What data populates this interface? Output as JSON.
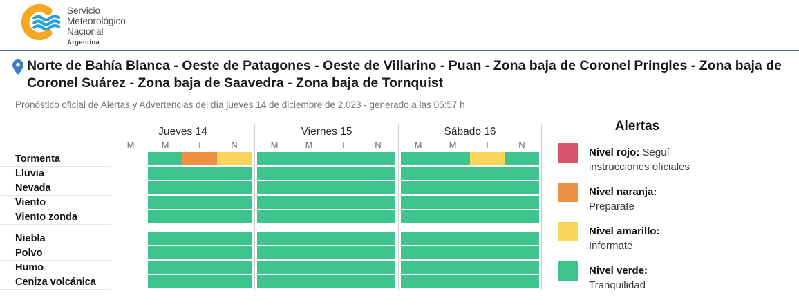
{
  "logo": {
    "line1": "Servicio",
    "line2": "Meteorológico",
    "line3": "Nacional",
    "country": "Argentina"
  },
  "location": {
    "title": "Norte de Bahía Blanca - Oeste de Patagones - Oeste de Villarino - Puan - Zona baja de Coronel Pringles - Zona baja de Coronel Suárez - Zona baja de Saavedra - Zona baja de Tornquist",
    "subtitle": "Pronóstico oficial de Alertas y Advertencias del día jueves 14 de diciembre de 2.023 - generado a las 05:57 h"
  },
  "colors": {
    "divider": "#4a6e94",
    "pin": "#3d7ec0",
    "logo_yellow": "#f6a722",
    "logo_blue": "#2aa0d8",
    "grid_line": "#cfcfcf",
    "levels": {
      "verde": "#3ec48c",
      "naranja": "#ee9142",
      "amarillo": "#fbd45c",
      "rojo": "#d5566b"
    }
  },
  "chart_data": {
    "type": "heatmap",
    "title": "Pronóstico oficial de Alertas y Advertencias",
    "days": [
      "Jueves 14",
      "Viernes 15",
      "Sábado 16"
    ],
    "period_labels_per_day": [
      "M",
      "M",
      "T",
      "N"
    ],
    "level_names": [
      "rojo",
      "naranja",
      "amarillo",
      "verde"
    ],
    "rows": [
      {
        "label": "Tormenta",
        "section": 1,
        "levels": [
          null,
          "verde",
          "naranja",
          "amarillo",
          "verde",
          "verde",
          "verde",
          "verde",
          "verde",
          "verde",
          "amarillo",
          "verde"
        ]
      },
      {
        "label": "Lluvia",
        "section": 1,
        "levels": [
          null,
          "verde",
          "verde",
          "verde",
          "verde",
          "verde",
          "verde",
          "verde",
          "verde",
          "verde",
          "verde",
          "verde"
        ]
      },
      {
        "label": "Nevada",
        "section": 1,
        "levels": [
          null,
          "verde",
          "verde",
          "verde",
          "verde",
          "verde",
          "verde",
          "verde",
          "verde",
          "verde",
          "verde",
          "verde"
        ]
      },
      {
        "label": "Viento",
        "section": 1,
        "levels": [
          null,
          "verde",
          "verde",
          "verde",
          "verde",
          "verde",
          "verde",
          "verde",
          "verde",
          "verde",
          "verde",
          "verde"
        ]
      },
      {
        "label": "Viento zonda",
        "section": 1,
        "levels": [
          null,
          "verde",
          "verde",
          "verde",
          "verde",
          "verde",
          "verde",
          "verde",
          "verde",
          "verde",
          "verde",
          "verde"
        ]
      },
      {
        "label": "Niebla",
        "section": 2,
        "levels": [
          null,
          "verde",
          "verde",
          "verde",
          "verde",
          "verde",
          "verde",
          "verde",
          "verde",
          "verde",
          "verde",
          "verde"
        ]
      },
      {
        "label": "Polvo",
        "section": 2,
        "levels": [
          null,
          "verde",
          "verde",
          "verde",
          "verde",
          "verde",
          "verde",
          "verde",
          "verde",
          "verde",
          "verde",
          "verde"
        ]
      },
      {
        "label": "Humo",
        "section": 2,
        "levels": [
          null,
          "verde",
          "verde",
          "verde",
          "verde",
          "verde",
          "verde",
          "verde",
          "verde",
          "verde",
          "verde",
          "verde"
        ]
      },
      {
        "label": "Ceniza volcánica",
        "section": 2,
        "levels": [
          null,
          "verde",
          "verde",
          "verde",
          "verde",
          "verde",
          "verde",
          "verde",
          "verde",
          "verde",
          "verde",
          "verde"
        ]
      }
    ]
  },
  "legend": {
    "title": "Alertas",
    "items": [
      {
        "label": "Nivel rojo:",
        "desc": "Seguí instrucciones oficiales",
        "level": "rojo"
      },
      {
        "label": "Nivel naranja:",
        "desc": "Preparate",
        "level": "naranja"
      },
      {
        "label": "Nivel amarillo:",
        "desc": "Informate",
        "level": "amarillo"
      },
      {
        "label": "Nivel verde:",
        "desc": "Tranquilidad",
        "level": "verde"
      }
    ]
  }
}
